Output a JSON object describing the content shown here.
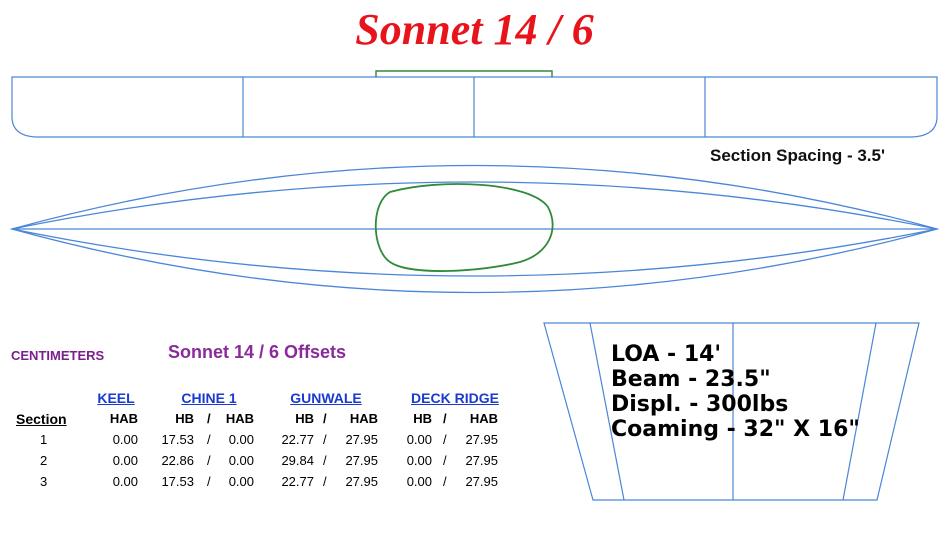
{
  "title": "Sonnet 14 / 6",
  "section_spacing": "Section Spacing - 3.5'",
  "units": "CENTIMETERS",
  "offsets_title": "Sonnet 14 / 6  Offsets",
  "specs": [
    "LOA - 14'",
    "Beam - 23.5\"",
    "Displ. - 300lbs",
    "Coaming - 32\" X 16\""
  ],
  "table": {
    "groups": [
      "KEEL",
      "CHINE 1",
      "GUNWALE",
      "DECK RIDGE"
    ],
    "section_label": "Section",
    "sub_headers": [
      "HAB",
      "HB",
      "/",
      "HAB",
      "HB",
      "/",
      "HAB",
      "HB",
      "/",
      "HAB"
    ],
    "rows": [
      {
        "section": "1",
        "cells": [
          "0.00",
          "17.53",
          "/",
          "0.00",
          "22.77",
          "/",
          "27.95",
          "0.00",
          "/",
          "27.95"
        ]
      },
      {
        "section": "2",
        "cells": [
          "0.00",
          "22.86",
          "/",
          "0.00",
          "29.84",
          "/",
          "27.95",
          "0.00",
          "/",
          "27.95"
        ]
      },
      {
        "section": "3",
        "cells": [
          "0.00",
          "17.53",
          "/",
          "0.00",
          "22.77",
          "/",
          "27.95",
          "0.00",
          "/",
          "27.95"
        ]
      }
    ]
  },
  "colors": {
    "title": "#e8141c",
    "hull_line": "#4a86d8",
    "coaming_line": "#2f8a3a",
    "offsets_title": "#8b2a9a",
    "group_header": "#1a3ad0"
  },
  "icons": [
    "side-profile-drawing",
    "plan-view-drawing",
    "cross-section-drawing"
  ]
}
